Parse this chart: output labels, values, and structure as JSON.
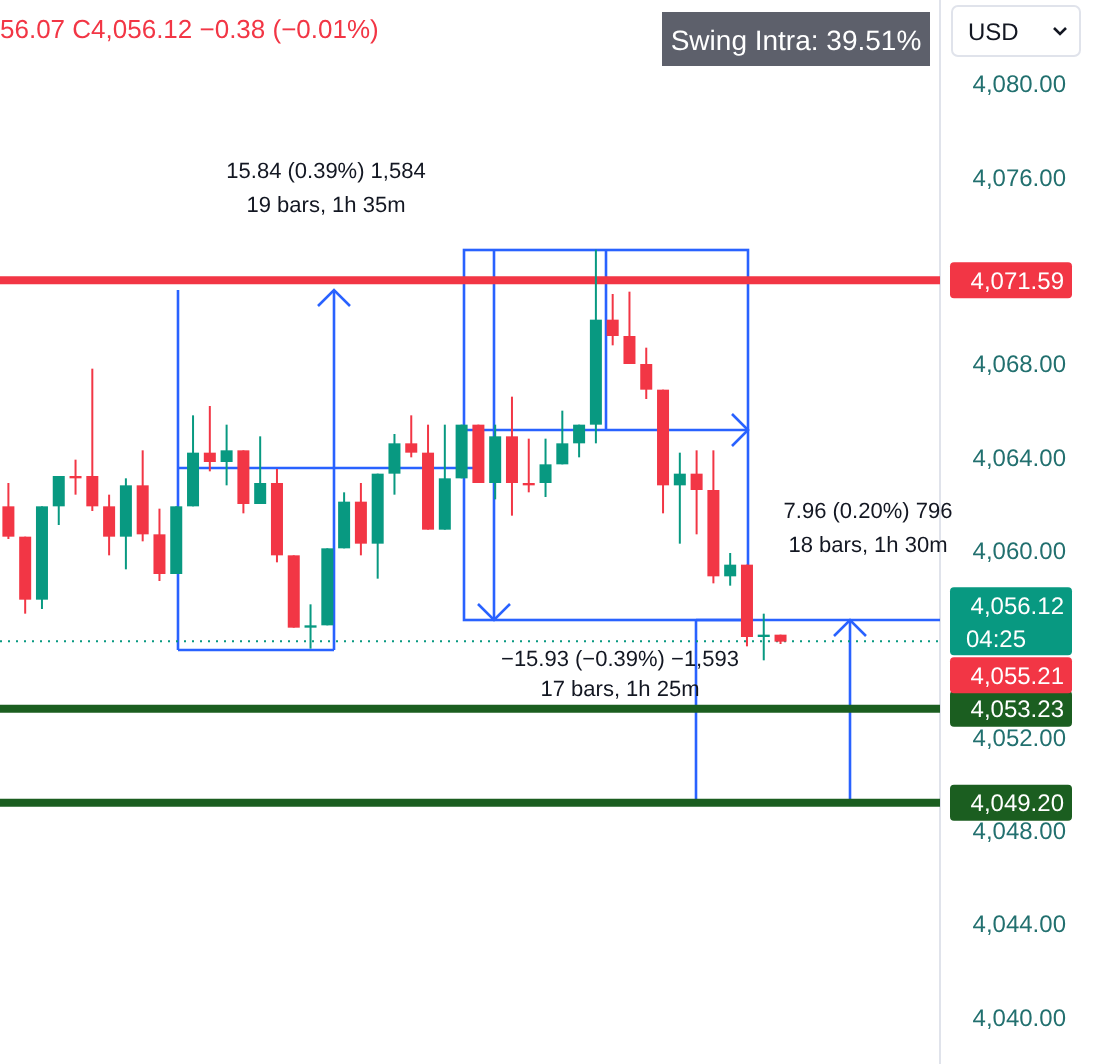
{
  "chart_data": {
    "type": "candlestick",
    "categories": [
      null,
      null,
      null,
      null,
      null,
      null,
      null,
      null,
      null,
      null,
      null,
      null,
      null,
      null,
      null,
      null,
      null,
      null,
      null,
      null,
      null,
      null,
      null,
      null,
      null,
      null,
      null,
      null,
      null,
      null,
      null,
      null,
      null,
      null,
      null,
      null,
      null,
      null,
      null,
      null,
      null,
      null,
      null,
      null,
      null,
      null,
      null,
      null,
      null,
      null,
      null,
      null,
      null,
      null,
      null,
      null
    ],
    "ohlc": [
      [
        4061.9,
        4062.9,
        4060.5,
        4060.6
      ],
      [
        4060.6,
        4060.6,
        4057.3,
        4057.9
      ],
      [
        4057.9,
        4061.9,
        4057.5,
        4061.9
      ],
      [
        4061.9,
        4063.2,
        4061.1,
        4063.2
      ],
      [
        4063.2,
        4063.9,
        4062.4,
        4063.1
      ],
      [
        4063.2,
        4067.8,
        4061.7,
        4061.9
      ],
      [
        4061.9,
        4062.4,
        4059.8,
        4060.6
      ],
      [
        4060.6,
        4063.1,
        4059.2,
        4062.8
      ],
      [
        4062.8,
        4064.3,
        4060.4,
        4060.7
      ],
      [
        4060.7,
        4061.8,
        4058.7,
        4059.0
      ],
      [
        4059.0,
        4061.9,
        4059.0,
        4061.9
      ],
      [
        4061.9,
        4065.8,
        4061.9,
        4064.2
      ],
      [
        4064.2,
        4066.2,
        4063.4,
        4063.8
      ],
      [
        4063.8,
        4065.4,
        4062.8,
        4064.3
      ],
      [
        4064.3,
        4064.3,
        4061.6,
        4062.0
      ],
      [
        4062.0,
        4064.9,
        4062.0,
        4062.9
      ],
      [
        4062.9,
        4063.5,
        4059.5,
        4059.8
      ],
      [
        4059.8,
        4059.8,
        4056.7,
        4056.7
      ],
      [
        4056.7,
        4057.7,
        4055.8,
        4056.8
      ],
      [
        4056.8,
        4060.1,
        4056.8,
        4060.1
      ],
      [
        4060.1,
        4062.5,
        4060.1,
        4062.1
      ],
      [
        4062.1,
        4062.9,
        4059.8,
        4060.3
      ],
      [
        4060.3,
        4063.3,
        4058.8,
        4063.3
      ],
      [
        4063.3,
        4065.0,
        4062.4,
        4064.6
      ],
      [
        4064.6,
        4065.8,
        4064.0,
        4064.2
      ],
      [
        4064.2,
        4065.4,
        4060.9,
        4060.9
      ],
      [
        4060.9,
        4065.4,
        4060.9,
        4063.1
      ],
      [
        4063.1,
        4065.4,
        4063.1,
        4065.4
      ],
      [
        4065.4,
        4065.4,
        4062.9,
        4062.9
      ],
      [
        4062.9,
        4065.4,
        4062.2,
        4064.9
      ],
      [
        4064.9,
        4066.6,
        4061.5,
        4062.9
      ],
      [
        4062.9,
        4064.8,
        4062.5,
        4062.8
      ],
      [
        4062.9,
        4064.8,
        4062.3,
        4063.7
      ],
      [
        4063.7,
        4066.0,
        4063.7,
        4064.6
      ],
      [
        4064.6,
        4065.4,
        4064.0,
        4065.4
      ],
      [
        4065.4,
        4072.9,
        4064.6,
        4069.9
      ],
      [
        4069.9,
        4071.0,
        4068.8,
        4069.2
      ],
      [
        4069.2,
        4071.1,
        4068.0,
        4068.0
      ],
      [
        4068.0,
        4068.7,
        4066.5,
        4066.9
      ],
      [
        4066.9,
        4066.9,
        4061.6,
        4062.8
      ],
      [
        4062.8,
        4064.2,
        4060.3,
        4063.3
      ],
      [
        4063.3,
        4064.3,
        4060.7,
        4062.6
      ],
      [
        4062.6,
        4064.3,
        4058.6,
        4058.9
      ],
      [
        4058.9,
        4059.9,
        4058.5,
        4059.4
      ],
      [
        4059.4,
        4059.4,
        4055.9,
        4056.3
      ],
      [
        4056.3,
        4057.3,
        4055.3,
        4056.4
      ],
      [
        4056.4,
        4056.4,
        4056.0,
        4056.1
      ],
      null,
      null,
      null,
      null,
      null,
      null,
      null,
      null,
      null
    ],
    "ylim": [
      4038,
      4083.6
    ],
    "yticks": [
      {
        "value": 4080,
        "label": "4,080.00"
      },
      {
        "value": 4076,
        "label": "4,076.00"
      },
      {
        "value": 4068,
        "label": "4,068.00"
      },
      {
        "value": 4064,
        "label": "4,064.00"
      },
      {
        "value": 4060,
        "label": "4,060.00"
      },
      {
        "value": 4052,
        "label": "4,052.00"
      },
      {
        "value": 4048,
        "label": "4,048.00"
      },
      {
        "value": 4044,
        "label": "4,044.00"
      },
      {
        "value": 4040,
        "label": "4,040.00"
      }
    ],
    "tick_labels": "y",
    "ref_lines": [
      {
        "axis": "y",
        "value": 4071.59,
        "label": "4,071.59",
        "color": "#f23645",
        "line_style": "solid"
      },
      {
        "axis": "y",
        "value": 4053.23,
        "label": "4,053.23",
        "color": "#1b5e20",
        "line_style": "solid"
      },
      {
        "axis": "y",
        "value": 4049.2,
        "label": "4,049.20",
        "color": "#1b5e20",
        "line_style": "solid"
      },
      {
        "axis": "y",
        "value": 4056.12,
        "label": "4,056.12",
        "color": "#089981",
        "line_style": "dotted"
      }
    ],
    "annotations": [
      "56.07 C4,056.12 −0.38 (−0.01%)",
      "Swing Intra: 39.51%",
      "USD",
      "15.84 (0.39%) 1,584",
      "19 bars, 1h 35m",
      "−15.93 (−0.39%) −1,593",
      "17 bars, 1h 25m",
      "7.96 (0.20%) 796",
      "18 bars, 1h 30m",
      "04:25",
      "4,055.21"
    ]
  }
}
